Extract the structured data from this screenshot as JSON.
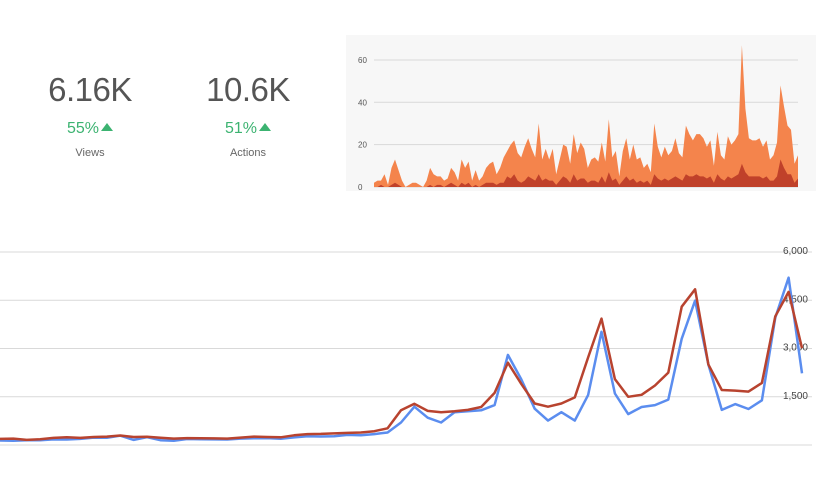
{
  "stats": [
    {
      "value": "6.16K",
      "change": "55%",
      "label": "Views"
    },
    {
      "value": "10.6K",
      "change": "51%",
      "label": "Actions"
    }
  ],
  "colors": {
    "positive": "#3cb371",
    "area_light": "#f4844c",
    "area_dark": "#c0412a",
    "line_blue": "#5b8def",
    "line_red": "#b8432f",
    "grid": "#d9d9d9"
  },
  "chart_data": [
    {
      "type": "area",
      "yticks": [
        0,
        20,
        40,
        60
      ],
      "ylim": [
        0,
        68
      ],
      "grid": true,
      "series": [
        {
          "values": [
            2,
            3,
            3,
            6,
            1,
            9,
            13,
            8,
            3,
            0,
            1,
            2,
            2,
            1,
            0,
            3,
            9,
            6,
            5,
            5,
            3,
            4,
            9,
            7,
            3,
            13,
            9,
            12,
            3,
            8,
            3,
            5,
            9,
            11,
            12,
            6,
            9,
            14,
            17,
            20,
            22,
            16,
            14,
            19,
            23,
            18,
            14,
            30,
            13,
            18,
            13,
            18,
            6,
            13,
            20,
            19,
            11,
            25,
            16,
            21,
            18,
            9,
            13,
            14,
            12,
            21,
            12,
            32,
            14,
            17,
            5,
            17,
            23,
            13,
            20,
            13,
            14,
            9,
            11,
            7,
            30,
            19,
            14,
            19,
            15,
            17,
            23,
            16,
            14,
            29,
            25,
            22,
            25,
            25,
            23,
            19,
            22,
            10,
            26,
            15,
            13,
            24,
            20,
            22,
            25,
            67,
            37,
            23,
            22,
            22,
            23,
            19,
            22,
            13,
            15,
            21,
            48,
            38,
            29,
            27,
            11,
            15
          ]
        },
        {
          "values": [
            0,
            0,
            1,
            0,
            0,
            1,
            2,
            1,
            0,
            0,
            0,
            0,
            0,
            0,
            0,
            0,
            1,
            0,
            1,
            1,
            0,
            1,
            2,
            1,
            0,
            2,
            1,
            2,
            0,
            1,
            0,
            1,
            2,
            2,
            2,
            1,
            2,
            2,
            5,
            4,
            6,
            3,
            2,
            3,
            5,
            4,
            3,
            6,
            3,
            4,
            3,
            3,
            1,
            3,
            5,
            4,
            2,
            6,
            3,
            4,
            4,
            2,
            3,
            3,
            2,
            5,
            2,
            7,
            3,
            4,
            1,
            3,
            5,
            3,
            4,
            2,
            3,
            2,
            3,
            1,
            6,
            4,
            3,
            4,
            3,
            4,
            5,
            4,
            3,
            6,
            5,
            5,
            6,
            5,
            5,
            4,
            5,
            2,
            6,
            4,
            3,
            5,
            4,
            5,
            6,
            11,
            7,
            5,
            5,
            5,
            5,
            4,
            5,
            3,
            3,
            5,
            13,
            9,
            6,
            6,
            2,
            4
          ]
        }
      ]
    },
    {
      "type": "line",
      "yticks": [
        "6,000",
        "4,500",
        "3,000",
        "1,500"
      ],
      "ylim": [
        0,
        6000
      ],
      "grid": true,
      "series": [
        {
          "values": [
            140,
            130,
            150,
            145,
            175,
            170,
            190,
            230,
            225,
            290,
            160,
            245,
            150,
            130,
            185,
            180,
            175,
            170,
            200,
            210,
            215,
            195,
            235,
            270,
            265,
            270,
            315,
            300,
            340,
            390,
            700,
            1190,
            850,
            700,
            1020,
            1050,
            1080,
            1240,
            2800,
            2040,
            1130,
            760,
            1020,
            760,
            1550,
            3520,
            1600,
            960,
            1180,
            1240,
            1410,
            3300,
            4490,
            2500,
            1090,
            1270,
            1120,
            1390,
            3960,
            5200,
            2230
          ]
        },
        {
          "values": [
            190,
            200,
            160,
            180,
            220,
            240,
            220,
            250,
            260,
            295,
            250,
            255,
            225,
            200,
            215,
            210,
            205,
            200,
            230,
            260,
            250,
            240,
            300,
            340,
            345,
            360,
            375,
            390,
            430,
            520,
            1080,
            1280,
            1060,
            1020,
            1050,
            1090,
            1180,
            1620,
            2560,
            1900,
            1290,
            1190,
            1290,
            1480,
            2720,
            3930,
            2050,
            1500,
            1560,
            1850,
            2250,
            4300,
            4840,
            2500,
            1710,
            1690,
            1660,
            1930,
            4000,
            4760,
            3010
          ]
        }
      ]
    }
  ]
}
